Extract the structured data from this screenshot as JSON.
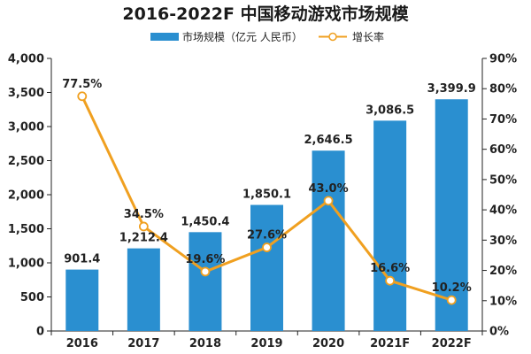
{
  "chart_data": {
    "type": "bar",
    "title": "2016-2022F 中国移动游戏市场规模",
    "categories": [
      "2016",
      "2017",
      "2018",
      "2019",
      "2020",
      "2021F",
      "2022F"
    ],
    "series": [
      {
        "name": "市场规模（亿元 人民币）",
        "type": "bar",
        "axis": "left",
        "color": "#2a8fd0",
        "values": [
          901.4,
          1212.4,
          1450.4,
          1850.1,
          2646.5,
          3086.5,
          3399.9
        ],
        "labels": [
          "901.4",
          "1,212.4",
          "1,450.4",
          "1,850.1",
          "2,646.5",
          "3,086.5",
          "3,399.9"
        ]
      },
      {
        "name": "增长率",
        "type": "line",
        "axis": "right",
        "color": "#f0a020",
        "values": [
          77.5,
          34.5,
          19.6,
          27.6,
          43.0,
          16.6,
          10.2
        ],
        "labels": [
          "77.5%",
          "34.5%",
          "19.6%",
          "27.6%",
          "43.0%",
          "16.6%",
          "10.2%"
        ]
      }
    ],
    "y_left": {
      "ylim": [
        0,
        4000
      ],
      "ticks": [
        0,
        500,
        1000,
        1500,
        2000,
        2500,
        3000,
        3500,
        4000
      ],
      "tick_labels": [
        "0",
        "500",
        "1,000",
        "1,500",
        "2,000",
        "2,500",
        "3,000",
        "3,500",
        "4,000"
      ]
    },
    "y_right": {
      "ylim": [
        0,
        90
      ],
      "ticks": [
        0,
        10,
        20,
        30,
        40,
        50,
        60,
        70,
        80,
        90
      ],
      "tick_labels": [
        "0%",
        "10%",
        "20%",
        "30%",
        "40%",
        "50%",
        "60%",
        "70%",
        "80%",
        "90%"
      ]
    },
    "grid": false,
    "legend_position": "top-center"
  }
}
